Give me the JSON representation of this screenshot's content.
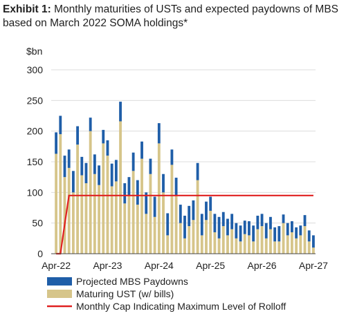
{
  "header": {
    "exhibit": "Exhibit 1:",
    "title": "Monthly maturities of USTs and expected paydowns of MBS based on March 2022 SOMA holdings*"
  },
  "chart_data": {
    "type": "bar",
    "stacked": true,
    "yunit": "$bn",
    "ylim": [
      0,
      300
    ],
    "yticks": [
      0,
      50,
      100,
      150,
      200,
      250,
      300
    ],
    "xtick_labels": [
      "Apr-22",
      "Apr-23",
      "Apr-24",
      "Apr-25",
      "Apr-26",
      "Apr-27"
    ],
    "xtick_positions": [
      0,
      12,
      24,
      36,
      48,
      60
    ],
    "grid": true,
    "legend_position": "bottom",
    "categories": [
      "Apr-22",
      "May-22",
      "Jun-22",
      "Jul-22",
      "Aug-22",
      "Sep-22",
      "Oct-22",
      "Nov-22",
      "Dec-22",
      "Jan-23",
      "Feb-23",
      "Mar-23",
      "Apr-23",
      "May-23",
      "Jun-23",
      "Jul-23",
      "Aug-23",
      "Sep-23",
      "Oct-23",
      "Nov-23",
      "Dec-23",
      "Jan-24",
      "Feb-24",
      "Mar-24",
      "Apr-24",
      "May-24",
      "Jun-24",
      "Jul-24",
      "Aug-24",
      "Sep-24",
      "Oct-24",
      "Nov-24",
      "Dec-24",
      "Jan-25",
      "Feb-25",
      "Mar-25",
      "Apr-25",
      "May-25",
      "Jun-25",
      "Jul-25",
      "Aug-25",
      "Sep-25",
      "Oct-25",
      "Nov-25",
      "Dec-25",
      "Jan-26",
      "Feb-26",
      "Mar-26",
      "Apr-26",
      "May-26",
      "Jun-26",
      "Jul-26",
      "Aug-26",
      "Sep-26",
      "Oct-26",
      "Nov-26",
      "Dec-26",
      "Jan-27",
      "Feb-27",
      "Mar-27",
      "Apr-27"
    ],
    "series": [
      {
        "name": "Maturing UST (w/ bills)",
        "color": "#d6c58a",
        "values": [
          163,
          195,
          125,
          140,
          100,
          178,
          128,
          115,
          200,
          130,
          112,
          180,
          160,
          110,
          118,
          216,
          82,
          95,
          135,
          80,
          155,
          65,
          130,
          60,
          180,
          100,
          30,
          145,
          95,
          50,
          25,
          45,
          55,
          120,
          30,
          55,
          70,
          35,
          25,
          45,
          30,
          40,
          25,
          20,
          32,
          30,
          20,
          40,
          45,
          25,
          40,
          20,
          20,
          50,
          30,
          35,
          25,
          30,
          45,
          20,
          10
        ]
      },
      {
        "name": "Projected MBS Paydowns",
        "color": "#1f5ea8",
        "values": [
          35,
          30,
          35,
          30,
          35,
          30,
          30,
          33,
          22,
          32,
          32,
          22,
          25,
          37,
          35,
          32,
          33,
          30,
          30,
          40,
          28,
          35,
          25,
          33,
          33,
          30,
          36,
          25,
          29,
          30,
          37,
          33,
          32,
          28,
          35,
          30,
          23,
          30,
          35,
          23,
          27,
          25,
          25,
          26,
          22,
          23,
          26,
          22,
          20,
          25,
          20,
          23,
          25,
          14,
          20,
          18,
          18,
          16,
          18,
          18,
          20
        ]
      },
      {
        "name": "Monthly Cap Indicating Maximum Level of Rolloff",
        "color": "#e02020",
        "type": "line",
        "values": [
          0,
          0,
          48,
          95,
          95,
          95,
          95,
          95,
          95,
          95,
          95,
          95,
          95,
          95,
          95,
          95,
          95,
          95,
          95,
          95,
          95,
          95,
          95,
          95,
          95,
          95,
          95,
          95,
          95,
          95,
          95,
          95,
          95,
          95,
          95,
          95,
          95,
          95,
          95,
          95,
          95,
          95,
          95,
          95,
          95,
          95,
          95,
          95,
          95,
          95,
          95,
          95,
          95,
          95,
          95,
          95,
          95,
          95,
          95,
          95,
          95
        ]
      }
    ]
  }
}
